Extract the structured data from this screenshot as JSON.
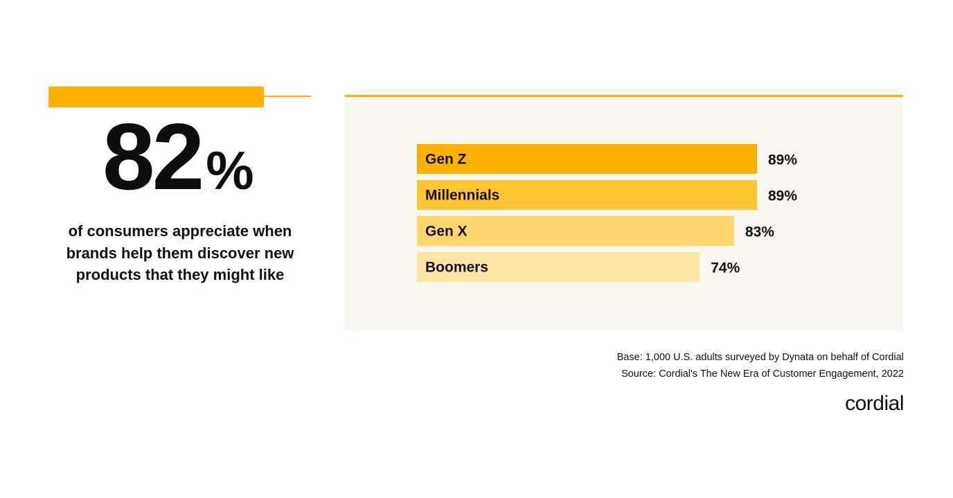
{
  "headline": {
    "number": "82",
    "percent_sign": "%",
    "description": "of consumers appreciate when brands help them discover new products that they might like"
  },
  "chart_data": {
    "type": "bar",
    "orientation": "horizontal",
    "categories": [
      "Gen Z",
      "Millennials",
      "Gen X",
      "Boomers"
    ],
    "values": [
      89,
      89,
      83,
      74
    ],
    "value_labels": [
      "89%",
      "89%",
      "83%",
      "74%"
    ],
    "colors": [
      "#ffb100",
      "#ffc433",
      "#ffd66b",
      "#ffe4a3"
    ],
    "xlim": [
      0,
      100
    ],
    "grid": false,
    "legend": "none"
  },
  "footer": {
    "base": "Base: 1,000 U.S. adults surveyed by Dynata on behalf of Cordial",
    "source": "Source: Cordial's The New Era of Customer Engagement, 2022"
  },
  "logo": {
    "text": "cordial"
  },
  "colors": {
    "accent": "#ffb100",
    "panel_bg": "#f9f6f0",
    "text": "#111111"
  }
}
